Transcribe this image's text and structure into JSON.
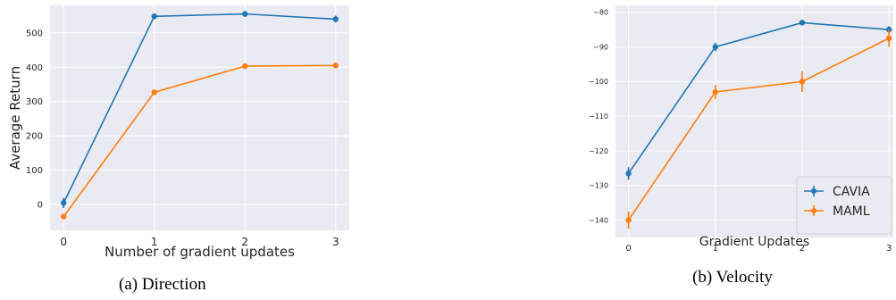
{
  "figure": {
    "caption_a": "(a) Direction",
    "caption_b": "(b) Velocity"
  },
  "colors": {
    "plot_bg": "#eaeaf2",
    "grid": "#ffffff",
    "tick_text": "#262626",
    "cavia": "#1f77b4",
    "maml": "#ff7f0e"
  },
  "chart_data": [
    {
      "type": "line",
      "title": "",
      "xlabel": "Number of gradient updates",
      "ylabel": "Average Return",
      "x": [
        0,
        1,
        2,
        3
      ],
      "xlim": [
        -0.15,
        3.15
      ],
      "ylim": [
        -75,
        580
      ],
      "xticks": [
        0,
        1,
        2,
        3
      ],
      "yticks": [
        0,
        100,
        200,
        300,
        400,
        500
      ],
      "grid": true,
      "legend": null,
      "series": [
        {
          "values": [
            5,
            548,
            555,
            540
          ],
          "err": [
            15,
            8,
            6,
            10
          ],
          "color": "#1f77b4"
        },
        {
          "values": [
            -35,
            327,
            403,
            405
          ],
          "err": [
            5,
            5,
            4,
            3
          ],
          "color": "#ff7f0e"
        }
      ]
    },
    {
      "type": "line",
      "title": "",
      "xlabel": "Gradient Updates",
      "ylabel": "",
      "x": [
        0,
        1,
        2,
        3
      ],
      "xlim": [
        -0.15,
        3.05
      ],
      "ylim": [
        -145,
        -78
      ],
      "xticks": [
        0,
        1,
        2,
        3
      ],
      "yticks": [
        -80,
        -90,
        -100,
        -110,
        -120,
        -130,
        -140
      ],
      "grid": true,
      "legend": "lower-right",
      "series": [
        {
          "name": "CAVIA",
          "values": [
            -126.5,
            -90,
            -83,
            -85
          ],
          "err": [
            1.8,
            1.2,
            0.8,
            1.0
          ],
          "color": "#1f77b4"
        },
        {
          "name": "MAML",
          "values": [
            -140,
            -103,
            -100,
            -87.5
          ],
          "err": [
            2.5,
            2.0,
            3.0,
            2.5
          ],
          "color": "#ff7f0e"
        }
      ]
    }
  ]
}
